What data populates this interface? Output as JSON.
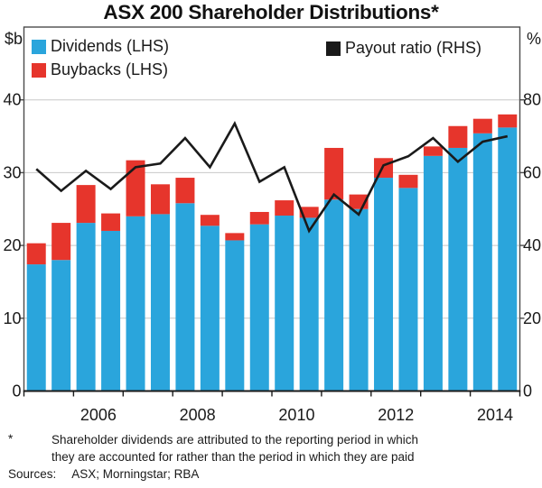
{
  "title": "ASX 200 Shareholder Distributions*",
  "left_axis_unit": "$b",
  "right_axis_unit": "%",
  "legend": {
    "dividends": "Dividends (LHS)",
    "buybacks": "Buybacks (LHS)",
    "payout": "Payout ratio (RHS)"
  },
  "footnote": {
    "marker": "*",
    "line1": "Shareholder dividends are attributed to the reporting period in which",
    "line2": "they are accounted for rather than the period in which they are paid"
  },
  "sources_label": "Sources:",
  "sources_text": "ASX; Morningstar; RBA",
  "colors": {
    "dividends": "#2aa5dc",
    "buybacks": "#e6352c",
    "payout_line": "#1a1a1a",
    "grid": "#c8c8c8",
    "frame": "#4c4c4c",
    "axis": "#1a1a1a"
  },
  "chart_data": {
    "type": "bar",
    "subtype": "stacked bars (semi-annual) with overlaid line on right axis",
    "periods": [
      "2005 H1",
      "2005 H2",
      "2006 H1",
      "2006 H2",
      "2007 H1",
      "2007 H2",
      "2008 H1",
      "2008 H2",
      "2009 H1",
      "2009 H2",
      "2010 H1",
      "2010 H2",
      "2011 H1",
      "2011 H2",
      "2012 H1",
      "2012 H2",
      "2013 H1",
      "2013 H2",
      "2014 H1",
      "2014 H2"
    ],
    "series": [
      {
        "name": "Dividends (LHS)",
        "type": "bar",
        "axis": "left",
        "values": [
          17.4,
          18.0,
          23.1,
          22.0,
          24.0,
          24.3,
          25.8,
          22.7,
          20.7,
          22.9,
          24.1,
          23.8,
          26.3,
          25.0,
          29.3,
          27.9,
          32.3,
          33.4,
          35.4,
          36.2
        ]
      },
      {
        "name": "Buybacks (LHS)",
        "type": "bar",
        "axis": "left",
        "stacked_on": "Dividends (LHS)",
        "values": [
          2.9,
          5.1,
          5.2,
          2.4,
          7.7,
          4.1,
          3.5,
          1.5,
          1.0,
          1.7,
          2.1,
          1.5,
          7.1,
          2.0,
          2.7,
          1.8,
          1.3,
          3.0,
          2.0,
          1.8
        ]
      },
      {
        "name": "Payout ratio (RHS)",
        "type": "line",
        "axis": "right",
        "values": [
          61,
          55,
          60.5,
          55.5,
          61.5,
          62.5,
          69.5,
          61.5,
          73.5,
          57.5,
          61.5,
          44,
          54,
          48.5,
          62,
          64.5,
          69.5,
          63,
          68.5,
          70
        ]
      }
    ],
    "left_axis": {
      "label": "$b",
      "min": 0,
      "max": 50,
      "ticks": [
        0,
        10,
        20,
        30,
        40
      ]
    },
    "right_axis": {
      "label": "%",
      "min": 0,
      "max": 100,
      "ticks": [
        0,
        20,
        40,
        60,
        80
      ]
    },
    "x_axis": {
      "start_year": 2005,
      "end_year": 2015,
      "year_labels": [
        "2006",
        "2008",
        "2010",
        "2012",
        "2014"
      ]
    },
    "grid": "horizontal gridlines at left-axis ticks 10-40",
    "legend_position": "inside plot, top-left (bars) and top-right (line)"
  }
}
